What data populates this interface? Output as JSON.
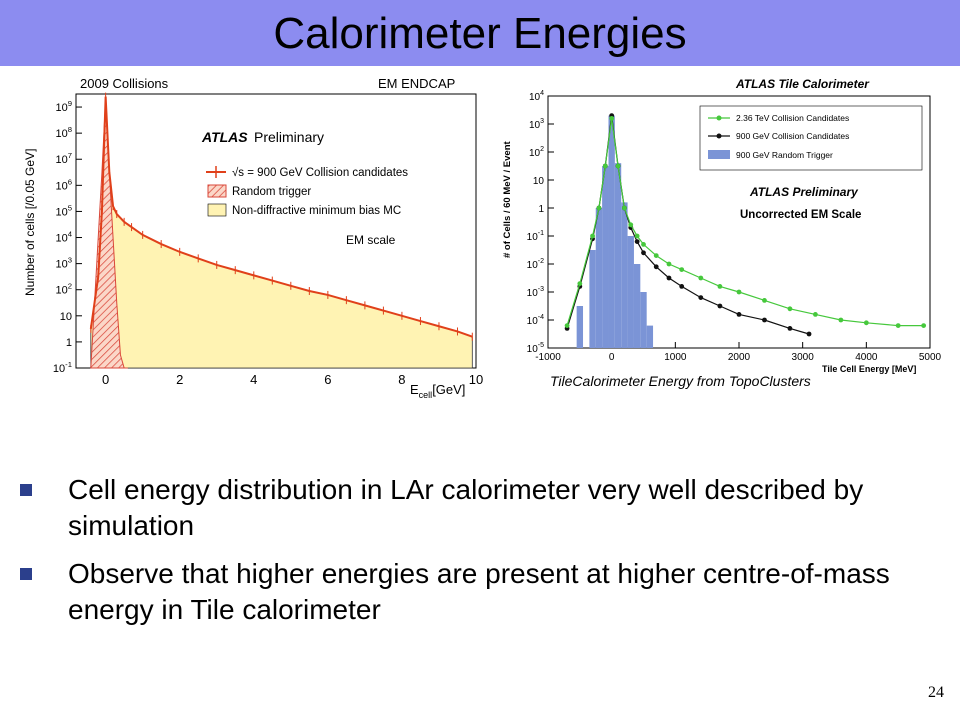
{
  "slide": {
    "title": "Calorimeter Energies",
    "bullets": [
      "Cell energy distribution in LAr calorimeter very well described by simulation",
      "Observe that higher energies are present at higher centre-of-mass energy in Tile calorimeter"
    ],
    "page_number": "24"
  },
  "colors": {
    "title_bg": "#8c8cf0",
    "bullet_mark": "#2b3f8c",
    "mc_fill": "#fff3b3",
    "collision_red": "#e0401a",
    "random_hatch": "#d9473a",
    "green_series": "#46c83c",
    "black_series": "#111111",
    "blue_hist": "#7b94d6"
  },
  "chart_data": [
    {
      "type": "area",
      "header_left": "2009 Collisions",
      "header_right": "EM ENDCAP",
      "preliminary_label": "ATLAS",
      "preliminary_suffix": "Preliminary",
      "xlabel_main": "E",
      "xlabel_sub": "cell",
      "xlabel_unit": "[GeV]",
      "ylabel": "Number of cells [/0.05 GeV]",
      "xlim": [
        -0.8,
        10
      ],
      "ylim_log10": [
        -1,
        9.5
      ],
      "log_y": true,
      "x_ticks": [
        "0",
        "2",
        "4",
        "6",
        "8",
        "10"
      ],
      "y_ticks": [
        "10^-1",
        "1",
        "10",
        "10^2",
        "10^3",
        "10^4",
        "10^5",
        "10^6",
        "10^7",
        "10^8",
        "10^9"
      ],
      "legend": [
        "√s = 900 GeV Collision candidates",
        "Random trigger",
        "Non-diffractive minimum bias MC"
      ],
      "note": "EM scale",
      "series": [
        {
          "name": "√s = 900 GeV Collision candidates",
          "x": [
            -0.4,
            -0.2,
            -0.1,
            0.0,
            0.1,
            0.2,
            0.3,
            0.5,
            0.7,
            1.0,
            1.5,
            2,
            2.5,
            3,
            3.5,
            4,
            4.5,
            5,
            5.5,
            6,
            6.5,
            7,
            7.5,
            8,
            8.5,
            9,
            9.5,
            9.9
          ],
          "log10_y": [
            0.5,
            2.5,
            5,
            9.4,
            6.5,
            5.2,
            4.9,
            4.6,
            4.4,
            4.1,
            3.75,
            3.45,
            3.2,
            2.95,
            2.75,
            2.55,
            2.35,
            2.15,
            1.95,
            1.8,
            1.6,
            1.4,
            1.2,
            1.0,
            0.8,
            0.6,
            0.4,
            0.2
          ]
        },
        {
          "name": "Random trigger",
          "x": [
            -0.4,
            -0.3,
            -0.2,
            -0.1,
            0.0,
            0.1,
            0.2,
            0.3,
            0.4,
            0.5,
            0.6
          ],
          "log10_y": [
            -1,
            1.5,
            4,
            6.5,
            9.3,
            6.5,
            4,
            1.5,
            -0.5,
            -1,
            -1
          ]
        },
        {
          "name": "Non-diffractive minimum bias MC",
          "x": [
            -0.4,
            -0.2,
            -0.1,
            0.0,
            0.1,
            0.2,
            0.3,
            0.5,
            0.7,
            1.0,
            1.5,
            2,
            2.5,
            3,
            3.5,
            4,
            4.5,
            5,
            5.5,
            6,
            6.5,
            7,
            7.5,
            8,
            8.5,
            9,
            9.5,
            9.9
          ],
          "log10_y": [
            0.5,
            2.5,
            5,
            9.3,
            6.4,
            5.2,
            4.9,
            4.6,
            4.4,
            4.1,
            3.75,
            3.45,
            3.2,
            2.95,
            2.75,
            2.55,
            2.35,
            2.15,
            1.95,
            1.8,
            1.6,
            1.4,
            1.2,
            1.0,
            0.8,
            0.6,
            0.4,
            0.2
          ]
        }
      ]
    },
    {
      "type": "line",
      "title": "ATLAS Tile Calorimeter",
      "annotation_1": "ATLAS Preliminary",
      "annotation_2": "Uncorrected EM Scale",
      "xlabel": "Tile Cell Energy [MeV]",
      "ylabel": "# of Cells / 60 MeV / Event",
      "caption": "TileCalorimeter Energy from TopoClusters",
      "xlim": [
        -1000,
        5000
      ],
      "ylim_log10": [
        -5,
        4
      ],
      "log_y": true,
      "x_ticks": [
        "-1000",
        "0",
        "1000",
        "2000",
        "3000",
        "4000",
        "5000"
      ],
      "y_ticks": [
        "10^-5",
        "10^-4",
        "10^-3",
        "10^-2",
        "10^-1",
        "1",
        "10",
        "10^2",
        "10^3",
        "10^4"
      ],
      "legend": [
        "2.36 TeV Collision Candidates",
        "900 GeV Collision Candidates",
        "900 GeV Random Trigger"
      ],
      "series": [
        {
          "name": "2.36 TeV Collision Candidates",
          "x": [
            -700,
            -500,
            -300,
            -200,
            -100,
            0,
            100,
            200,
            300,
            400,
            500,
            700,
            900,
            1100,
            1400,
            1700,
            2000,
            2400,
            2800,
            3200,
            3600,
            4000,
            4500,
            4900
          ],
          "log10_y": [
            -4.2,
            -2.7,
            -1.0,
            0.0,
            1.5,
            3.2,
            1.5,
            0.0,
            -0.6,
            -1.0,
            -1.3,
            -1.7,
            -2.0,
            -2.2,
            -2.5,
            -2.8,
            -3.0,
            -3.3,
            -3.6,
            -3.8,
            -4.0,
            -4.1,
            -4.2,
            -4.2
          ]
        },
        {
          "name": "900 GeV Collision Candidates",
          "x": [
            -700,
            -500,
            -300,
            -200,
            -100,
            0,
            100,
            200,
            300,
            400,
            500,
            700,
            900,
            1100,
            1400,
            1700,
            2000,
            2400,
            2800,
            3100
          ],
          "log10_y": [
            -4.3,
            -2.8,
            -1.1,
            0.0,
            1.5,
            3.3,
            1.5,
            0.0,
            -0.7,
            -1.2,
            -1.6,
            -2.1,
            -2.5,
            -2.8,
            -3.2,
            -3.5,
            -3.8,
            -4.0,
            -4.3,
            -4.5
          ]
        },
        {
          "name": "900 GeV Random Trigger",
          "x": [
            -700,
            -500,
            -300,
            -200,
            -100,
            0,
            100,
            200,
            300,
            400,
            500,
            600,
            700
          ],
          "log10_y": [
            -5,
            -3.5,
            -1.5,
            0.0,
            1.5,
            3.3,
            1.6,
            0.2,
            -1.0,
            -2.0,
            -3.0,
            -4.2,
            -5
          ]
        }
      ]
    }
  ]
}
